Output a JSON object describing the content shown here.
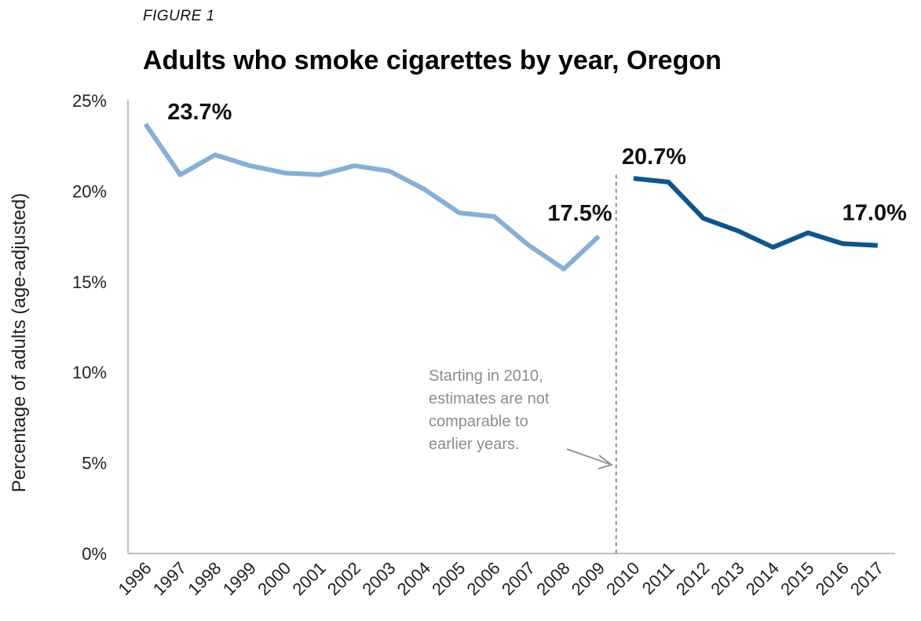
{
  "figure_label": "FIGURE 1",
  "chart_data": {
    "type": "line",
    "title": "Adults who smoke cigarettes by year, Oregon",
    "xlabel": "",
    "ylabel": "Percentage of adults (age-adjusted)",
    "ylim": [
      0,
      25
    ],
    "yticks": [
      "0%",
      "5%",
      "10%",
      "15%",
      "20%",
      "25%"
    ],
    "categories": [
      "1996",
      "1997",
      "1998",
      "1999",
      "2000",
      "2001",
      "2002",
      "2003",
      "2004",
      "2005",
      "2006",
      "2007",
      "2008",
      "2009",
      "2010",
      "2011",
      "2012",
      "2013",
      "2014",
      "2015",
      "2016",
      "2017"
    ],
    "series": [
      {
        "color": "#86afd6",
        "x": [
          "1996",
          "1997",
          "1998",
          "1999",
          "2000",
          "2001",
          "2002",
          "2003",
          "2004",
          "2005",
          "2006",
          "2007",
          "2008",
          "2009"
        ],
        "values": [
          23.7,
          20.9,
          22.0,
          21.4,
          21.0,
          20.9,
          21.4,
          21.1,
          20.1,
          18.8,
          18.6,
          17.0,
          15.7,
          17.5
        ]
      },
      {
        "color": "#0f558c",
        "x": [
          "2010",
          "2011",
          "2012",
          "2013",
          "2014",
          "2015",
          "2016",
          "2017"
        ],
        "values": [
          20.7,
          20.5,
          18.5,
          17.8,
          16.9,
          17.7,
          17.1,
          17.0
        ]
      }
    ],
    "data_labels": [
      {
        "text": "23.7%",
        "x": "1996",
        "y": 23.7
      },
      {
        "text": "17.5%",
        "x": "2009",
        "y": 17.5
      },
      {
        "text": "20.7%",
        "x": "2010",
        "y": 20.7
      },
      {
        "text": "17.0%",
        "x": "2017",
        "y": 17.0
      }
    ],
    "annotation": {
      "lines": [
        "Starting in 2010,",
        "estimates are not",
        "comparable to",
        "earlier years."
      ],
      "divider_between": [
        "2009",
        "2010"
      ]
    },
    "grid": false,
    "legend": "none"
  }
}
